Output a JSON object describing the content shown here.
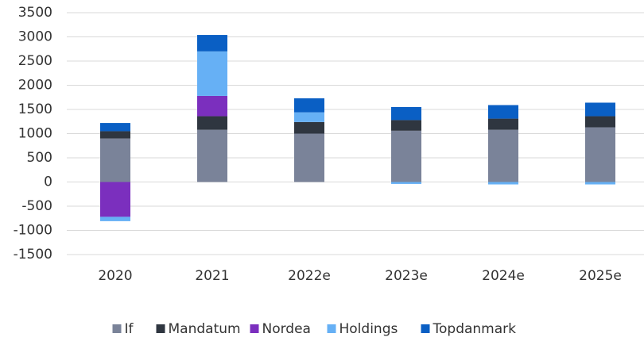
{
  "chart_data": {
    "type": "stacked_bar",
    "categories": [
      "2020",
      "2021",
      "2022e",
      "2023e",
      "2024e",
      "2025e"
    ],
    "series": [
      {
        "name": "If",
        "color": "#7a8399",
        "values": [
          900,
          1080,
          1000,
          1060,
          1080,
          1130
        ]
      },
      {
        "name": "Mandatum",
        "color": "#2f3640",
        "values": [
          150,
          280,
          240,
          220,
          230,
          230
        ]
      },
      {
        "name": "Nordea",
        "color": "#7b2fbe",
        "values": [
          -720,
          420,
          0,
          0,
          0,
          0
        ]
      },
      {
        "name": "Holdings",
        "color": "#66b0f5",
        "values": [
          -90,
          920,
          200,
          -40,
          -50,
          -50
        ]
      },
      {
        "name": "Topdanmark",
        "color": "#0a5fc4",
        "values": [
          170,
          340,
          290,
          270,
          280,
          280
        ]
      }
    ],
    "ylim": [
      -1500,
      3500
    ],
    "yticks": [
      -1500,
      -1000,
      -500,
      0,
      500,
      1000,
      1500,
      2000,
      2500,
      3000,
      3500
    ],
    "grid": true,
    "legend": "bottom"
  }
}
